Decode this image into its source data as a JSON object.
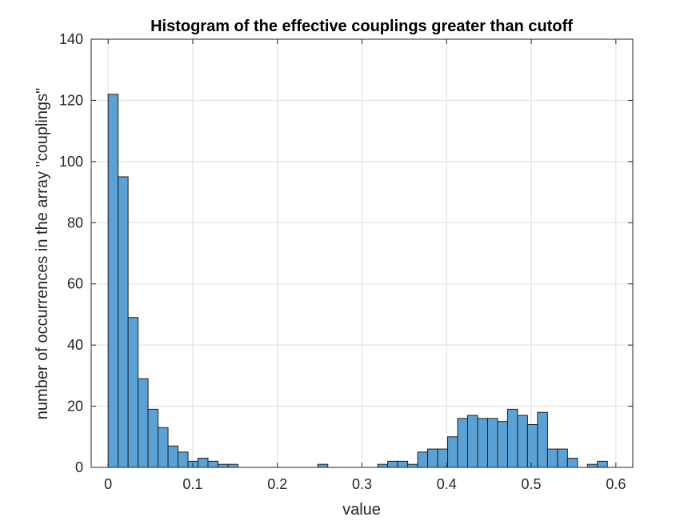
{
  "chart_data": {
    "type": "bar",
    "subtype": "histogram",
    "title": "Histogram of the effective couplings greater than cutoff",
    "xlabel": "value",
    "ylabel": "number of occurrences in the array \"couplings\"",
    "xlim": [
      -0.02,
      0.62
    ],
    "ylim": [
      0,
      140
    ],
    "xticks": [
      "0",
      "0.1",
      "0.2",
      "0.3",
      "0.4",
      "0.5",
      "0.6"
    ],
    "xtick_values": [
      0,
      0.1,
      0.2,
      0.3,
      0.4,
      0.5,
      0.6
    ],
    "yticks": [
      "0",
      "20",
      "40",
      "60",
      "80",
      "100",
      "120",
      "140"
    ],
    "ytick_values": [
      0,
      20,
      40,
      60,
      80,
      100,
      120,
      140
    ],
    "grid": true,
    "bar_color": "#5aa2d6",
    "edge_color": "#1f1f1f",
    "bin_start": 0.0,
    "bin_width": 0.0118,
    "values": [
      122,
      95,
      49,
      29,
      19,
      13,
      7,
      5,
      2,
      3,
      2,
      1,
      1,
      0,
      0,
      0,
      0,
      0,
      0,
      0,
      0,
      1,
      0,
      0,
      0,
      0,
      0,
      1,
      2,
      2,
      1,
      5,
      6,
      6,
      10,
      16,
      17,
      16,
      16,
      15,
      19,
      17,
      14,
      18,
      6,
      6,
      3,
      0,
      1,
      2
    ]
  }
}
